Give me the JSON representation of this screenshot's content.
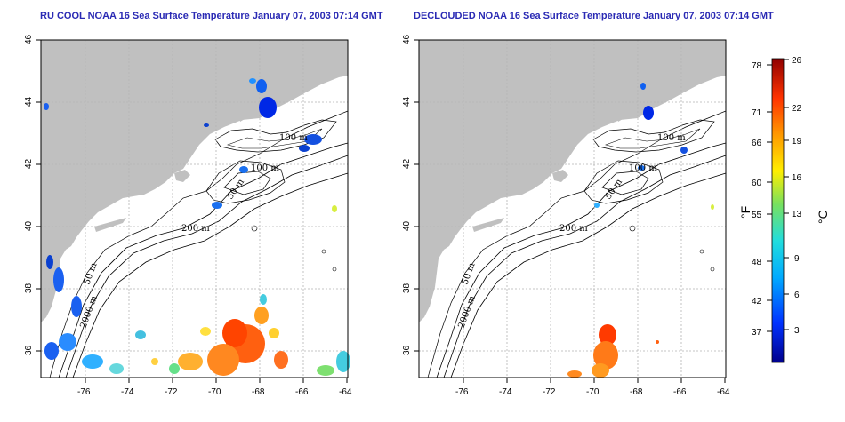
{
  "panels": [
    {
      "title": "RU COOL NOAA 16 Sea Surface Temperature January 07, 2003 07:14 GMT",
      "contour_labels": [
        "100 m",
        "100 m",
        "50 m",
        "200 m",
        "50 m",
        "2000 m"
      ]
    },
    {
      "title": "DECLOUDED NOAA 16 Sea Surface Temperature January 07, 2003 07:14 GMT",
      "contour_labels": [
        "100 m",
        "100 m",
        "50 m",
        "200 m",
        "50 m",
        "2000 m"
      ]
    }
  ],
  "axes": {
    "lat_ticks": [
      "36",
      "38",
      "40",
      "42",
      "44",
      "46"
    ],
    "lon_ticks": [
      "-76",
      "-74",
      "-72",
      "-70",
      "-68",
      "-66",
      "-64"
    ]
  },
  "colorbar": {
    "unit_f": "°F",
    "unit_c": "°C",
    "f_ticks": [
      "78",
      "71",
      "66",
      "60",
      "55",
      "48",
      "42",
      "37"
    ],
    "c_ticks": [
      "26",
      "22",
      "19",
      "16",
      "13",
      "9",
      "6",
      "3"
    ]
  },
  "colors": {
    "land": "#c0c0c0",
    "title": "#2a2ab4",
    "grid": "#b4b4b4"
  }
}
